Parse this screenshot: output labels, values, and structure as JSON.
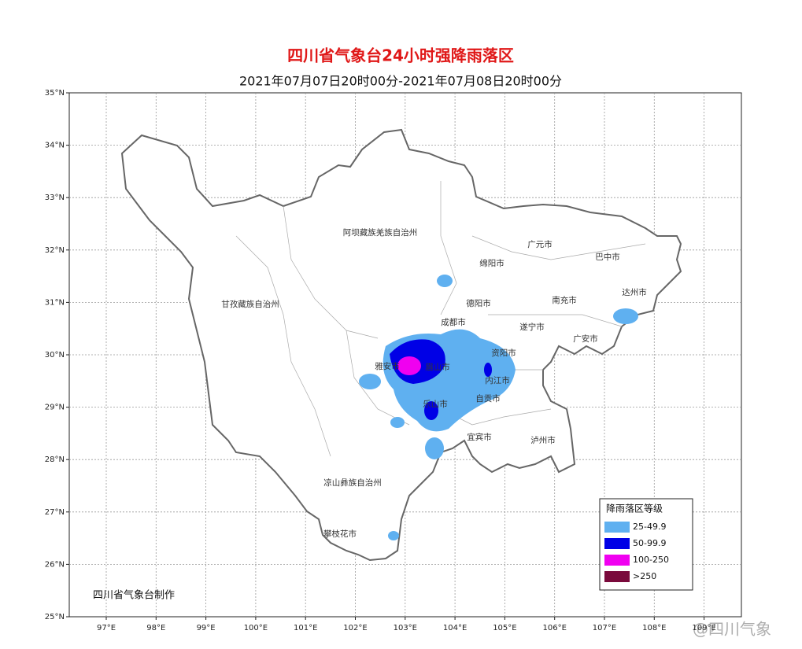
{
  "header": {
    "title": "四川省气象台24小时强降雨落区",
    "subtitle": "2021年07月07日20时00分-2021年07月08日20时00分"
  },
  "map": {
    "lat_ticks": [
      {
        "value": 35,
        "label": "35°N"
      },
      {
        "value": 34,
        "label": "34°N"
      },
      {
        "value": 33,
        "label": "33°N"
      },
      {
        "value": 32,
        "label": "32°N"
      },
      {
        "value": 31,
        "label": "31°N"
      },
      {
        "value": 30,
        "label": "30°N"
      },
      {
        "value": 29,
        "label": "29°N"
      },
      {
        "value": 28,
        "label": "28°N"
      },
      {
        "value": 27,
        "label": "27°N"
      },
      {
        "value": 26,
        "label": "26°N"
      },
      {
        "value": 25,
        "label": "25°N"
      }
    ],
    "lon_ticks": [
      {
        "value": 97,
        "label": "97°E"
      },
      {
        "value": 98,
        "label": "98°E"
      },
      {
        "value": 99,
        "label": "99°E"
      },
      {
        "value": 100,
        "label": "100°E"
      },
      {
        "value": 101,
        "label": "101°E"
      },
      {
        "value": 102,
        "label": "102°E"
      },
      {
        "value": 103,
        "label": "103°E"
      },
      {
        "value": 104,
        "label": "104°E"
      },
      {
        "value": 105,
        "label": "105°E"
      },
      {
        "value": 106,
        "label": "106°E"
      },
      {
        "value": 107,
        "label": "107°E"
      },
      {
        "value": 108,
        "label": "108°E"
      },
      {
        "value": 109,
        "label": "109°E"
      }
    ],
    "regions": [
      "阿坝藏族羌族自治州",
      "甘孜藏族自治州",
      "凉山彝族自治州",
      "攀枝花市",
      "绵阳市",
      "广元市",
      "巴中市",
      "达州市",
      "南充市",
      "德阳市",
      "遂宁市",
      "广安市",
      "成都市",
      "资阳市",
      "雅安市",
      "眉山市",
      "内江市",
      "乐山市",
      "自贡市",
      "宜宾市",
      "泸州市"
    ],
    "legend": {
      "title": "降雨落区等级",
      "items": [
        {
          "label": "25-49.9",
          "color": "#5fb0f0"
        },
        {
          "label": "50-99.9",
          "color": "#0000e6"
        },
        {
          "label": "100-250",
          "color": "#f000f0"
        },
        {
          "label": ">250",
          "color": "#7a0a3c"
        }
      ]
    },
    "credit": "四川省气象台制作"
  },
  "watermark": "@四川气象"
}
